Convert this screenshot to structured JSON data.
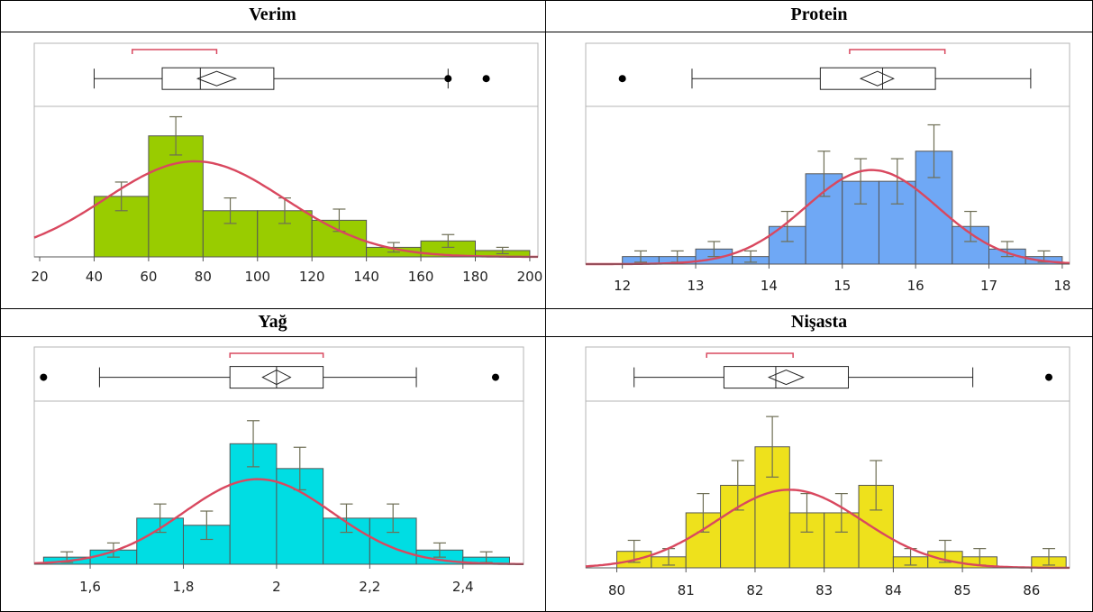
{
  "chart_data": [
    {
      "type": "bar",
      "title": "Verim",
      "color": "#99cc00",
      "ticks": [
        20,
        40,
        60,
        80,
        100,
        120,
        140,
        160,
        180,
        200
      ],
      "tick_labels": [
        "20",
        "40",
        "60",
        "80",
        "100",
        "120",
        "140",
        "160",
        "180",
        "200"
      ],
      "xlim": [
        18,
        203
      ],
      "bins": [
        [
          40,
          60
        ],
        [
          60,
          80
        ],
        [
          80,
          100
        ],
        [
          100,
          120
        ],
        [
          120,
          140
        ],
        [
          140,
          160
        ],
        [
          160,
          180
        ],
        [
          180,
          200
        ]
      ],
      "values": [
        38,
        76,
        29,
        29,
        23,
        6,
        10,
        4
      ],
      "errors": [
        9,
        12,
        8,
        8,
        7,
        3,
        4,
        2
      ],
      "ylim": [
        0,
        90
      ],
      "normal_fit": {
        "mean": 77,
        "sd": 33,
        "peak": 60
      },
      "box": {
        "whisker_low": 40,
        "q1": 65,
        "median": 79,
        "q3": 106,
        "whisker_high": 170,
        "mean": 85,
        "ci_low": 78,
        "ci_high": 92,
        "outliers": [
          170,
          184
        ],
        "shortest_half": [
          54,
          85
        ]
      }
    },
    {
      "type": "bar",
      "title": "Protein",
      "color": "#6fa8f5",
      "ticks": [
        12,
        13,
        14,
        15,
        16,
        17,
        18
      ],
      "tick_labels": [
        "12",
        "13",
        "14",
        "15",
        "16",
        "17",
        "18"
      ],
      "xlim": [
        11.5,
        18.1
      ],
      "bins": [
        [
          12,
          12.5
        ],
        [
          12.5,
          13
        ],
        [
          13,
          13.5
        ],
        [
          13.5,
          14
        ],
        [
          14,
          14.5
        ],
        [
          14.5,
          15
        ],
        [
          15,
          15.5
        ],
        [
          15.5,
          16
        ],
        [
          16,
          16.5
        ],
        [
          16.5,
          17
        ],
        [
          17,
          17.5
        ],
        [
          17.5,
          18
        ]
      ],
      "values": [
        2,
        2,
        4,
        2,
        10,
        24,
        22,
        22,
        30,
        10,
        4,
        2
      ],
      "errors": [
        1.5,
        1.5,
        2,
        1.5,
        4,
        6,
        6,
        6,
        7,
        4,
        2,
        1.5
      ],
      "ylim": [
        0,
        40
      ],
      "normal_fit": {
        "mean": 15.4,
        "sd": 0.9,
        "peak": 25
      },
      "box": {
        "whisker_low": 12.95,
        "q1": 14.7,
        "median": 15.55,
        "q3": 16.27,
        "whisker_high": 17.57,
        "mean": 15.48,
        "ci_low": 15.25,
        "ci_high": 15.7,
        "outliers": [
          12.0
        ],
        "shortest_half": [
          15.1,
          16.4
        ]
      }
    },
    {
      "type": "bar",
      "title": "Yağ",
      "color": "#00dde3",
      "ticks": [
        1.6,
        1.8,
        2,
        2.2,
        2.4
      ],
      "tick_labels": [
        "1,6",
        "1,8",
        "2",
        "2,2",
        "2,4"
      ],
      "xlim": [
        1.48,
        2.53
      ],
      "bins": [
        [
          1.5,
          1.6
        ],
        [
          1.6,
          1.7
        ],
        [
          1.7,
          1.8
        ],
        [
          1.8,
          1.9
        ],
        [
          1.9,
          2.0
        ],
        [
          2.0,
          2.1
        ],
        [
          2.1,
          2.2
        ],
        [
          2.2,
          2.3
        ],
        [
          2.3,
          2.4
        ],
        [
          2.4,
          2.5
        ]
      ],
      "values": [
        2,
        4,
        13,
        11,
        34,
        27,
        13,
        13,
        4,
        2
      ],
      "errors": [
        1.5,
        2,
        4,
        4,
        6.5,
        6,
        4,
        4,
        2,
        1.5
      ],
      "ylim": [
        0,
        44
      ],
      "normal_fit": {
        "mean": 1.96,
        "sd": 0.16,
        "peak": 24
      },
      "box": {
        "whisker_low": 1.62,
        "q1": 1.9,
        "median": 2.0,
        "q3": 2.1,
        "whisker_high": 2.3,
        "mean": 2.0,
        "ci_low": 1.97,
        "ci_high": 2.03,
        "outliers": [
          1.5,
          2.47
        ],
        "shortest_half": [
          1.9,
          2.1
        ]
      }
    },
    {
      "type": "bar",
      "title": "Nişasta",
      "color": "#eee11c",
      "ticks": [
        80,
        81,
        82,
        83,
        84,
        85,
        86
      ],
      "tick_labels": [
        "80",
        "81",
        "82",
        "83",
        "84",
        "85",
        "86"
      ],
      "xlim": [
        79.55,
        86.55
      ],
      "bins": [
        [
          80,
          80.5
        ],
        [
          80.5,
          81
        ],
        [
          81,
          81.5
        ],
        [
          81.5,
          82
        ],
        [
          82,
          82.5
        ],
        [
          82.5,
          83
        ],
        [
          83,
          83.5
        ],
        [
          83.5,
          84
        ],
        [
          84,
          84.5
        ],
        [
          84.5,
          85
        ],
        [
          85,
          85.5
        ],
        [
          86,
          86.5
        ]
      ],
      "values": [
        3,
        2,
        10,
        15,
        22,
        10,
        10,
        15,
        2,
        3,
        2,
        2
      ],
      "errors": [
        2,
        1.5,
        3.5,
        4.5,
        5.5,
        3.5,
        3.5,
        4.5,
        1.5,
        2,
        1.5,
        1.5
      ],
      "ylim": [
        0,
        29
      ],
      "normal_fit": {
        "mean": 82.5,
        "sd": 1.05,
        "peak": 14.2
      },
      "box": {
        "whisker_low": 80.25,
        "q1": 81.55,
        "median": 82.3,
        "q3": 83.35,
        "whisker_high": 85.15,
        "mean": 82.45,
        "ci_low": 82.2,
        "ci_high": 82.7,
        "outliers": [
          86.25
        ],
        "shortest_half": [
          81.3,
          82.55
        ]
      }
    }
  ]
}
